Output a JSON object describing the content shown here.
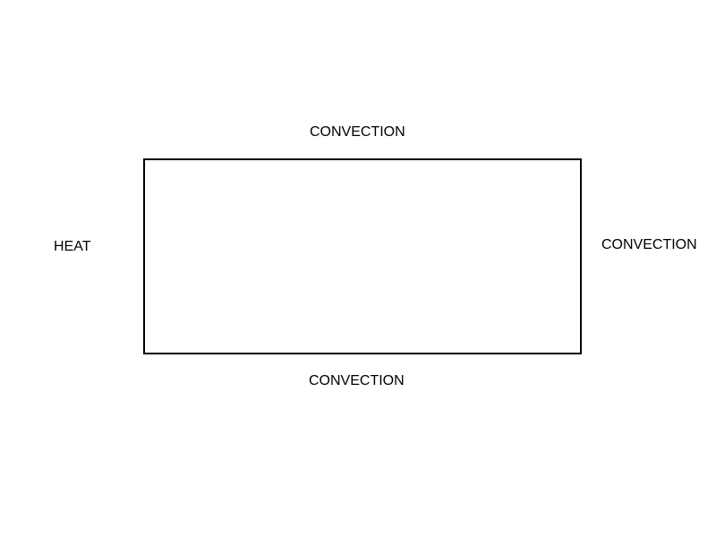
{
  "diagram": {
    "labels": {
      "top": "CONVECTION",
      "right": "CONVECTION",
      "bottom": "CONVECTION",
      "left": "HEAT"
    },
    "colors": {
      "background": "#ffffff",
      "stroke": "#000000",
      "text": "#000000"
    }
  }
}
